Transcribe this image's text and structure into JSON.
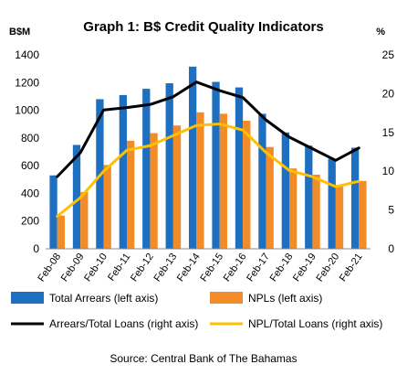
{
  "chart_data": {
    "type": "bar-line-combo",
    "title": "Graph 1: B$ Credit Quality Indicators",
    "left_axis_unit": "B$M",
    "right_axis_unit": "%",
    "categories": [
      "Feb-08",
      "Feb-09",
      "Feb-10",
      "Feb-11",
      "Feb-12",
      "Feb-13",
      "Feb-14",
      "Feb-15",
      "Feb-16",
      "Feb-17",
      "Feb-18",
      "Feb-19",
      "Feb-20",
      "Feb-21"
    ],
    "left_axis": {
      "min": 0,
      "max": 1400,
      "step": 200,
      "ticks": [
        "0",
        "200",
        "400",
        "600",
        "800",
        "1000",
        "1200",
        "1400"
      ]
    },
    "right_axis": {
      "min": 0,
      "max": 25,
      "step": 5,
      "ticks": [
        "0",
        "5",
        "10",
        "15",
        "20",
        "25"
      ]
    },
    "series": [
      {
        "name": "Total Arrears (left axis)",
        "kind": "bar",
        "axis": "left",
        "color": "#1F6FC0",
        "values": [
          530,
          750,
          1080,
          1110,
          1155,
          1195,
          1315,
          1205,
          1165,
          975,
          840,
          745,
          650,
          730
        ]
      },
      {
        "name": "NPLs (left axis)",
        "kind": "bar",
        "axis": "left",
        "color": "#F28C28",
        "values": [
          240,
          410,
          605,
          780,
          835,
          890,
          985,
          975,
          925,
          735,
          580,
          535,
          460,
          490
        ]
      },
      {
        "name": "Arrears/Total Loans (right axis)",
        "kind": "line",
        "axis": "right",
        "color": "#000000",
        "values": [
          9.3,
          12.4,
          17.9,
          18.2,
          18.6,
          19.6,
          21.5,
          20.4,
          19.5,
          16.6,
          14.4,
          12.9,
          11.4,
          13.0
        ]
      },
      {
        "name": "NPL/Total Loans (right axis)",
        "kind": "line",
        "axis": "right",
        "color": "#FFC000",
        "values": [
          4.2,
          6.6,
          10.0,
          12.7,
          13.3,
          14.6,
          15.9,
          16.1,
          15.3,
          12.4,
          10.1,
          9.3,
          8.0,
          8.7
        ]
      }
    ],
    "legend_position": "bottom",
    "grid": false,
    "source": "Source: Central Bank of The Bahamas"
  }
}
